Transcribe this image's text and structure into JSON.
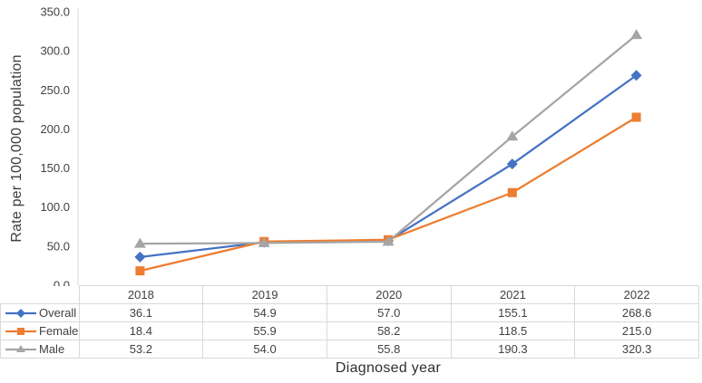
{
  "chart_data": {
    "type": "line",
    "categories": [
      "2018",
      "2019",
      "2020",
      "2021",
      "2022"
    ],
    "series": [
      {
        "name": "Overall",
        "values": [
          36.1,
          54.9,
          57.0,
          155.1,
          268.6
        ],
        "color": "#4472C4",
        "marker": "diamond"
      },
      {
        "name": "Female",
        "values": [
          18.4,
          55.9,
          58.2,
          118.5,
          215.0
        ],
        "color": "#ED7D31",
        "marker": "square"
      },
      {
        "name": "Male",
        "values": [
          53.2,
          54.0,
          55.8,
          190.3,
          320.3
        ],
        "color": "#A5A5A5",
        "marker": "triangle"
      }
    ],
    "title": "",
    "xlabel": "Diagnosed year",
    "ylabel": "Rate per 100,000 population",
    "ylim": [
      0,
      350
    ],
    "ytick_step": 50,
    "ytick_labels": [
      "0.0",
      "50.0",
      "100.0",
      "150.0",
      "200.0",
      "250.0",
      "300.0",
      "350.0"
    ],
    "grid": false,
    "legend_position": "table-left",
    "axis_color": "#d9d9d9",
    "text_color": "#414141"
  }
}
